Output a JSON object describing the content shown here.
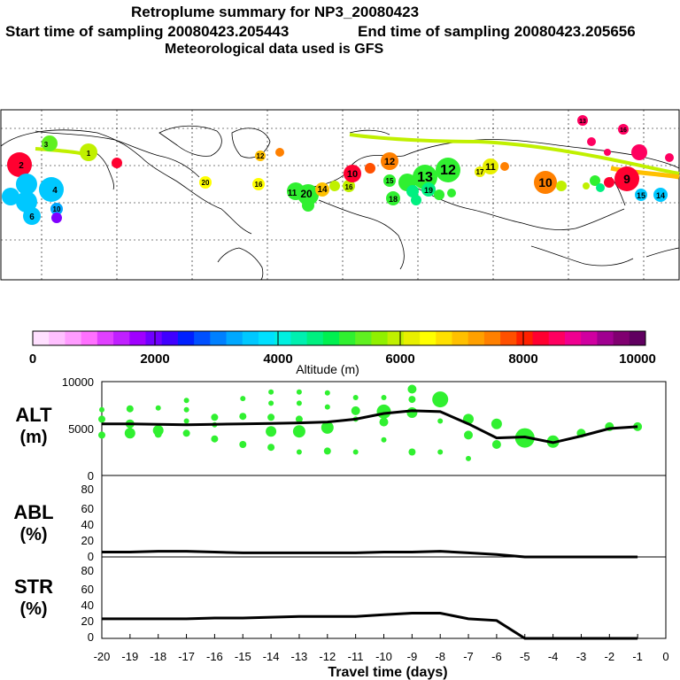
{
  "header": {
    "title": "Retroplume summary for NP3_20080423",
    "start_label": "Start time of sampling 20080423.205443",
    "end_label": "End time of sampling 20080423.205656",
    "met_label": "Meteorological data used is GFS"
  },
  "colorbar": {
    "title": "Altitude (m)",
    "ticks": [
      "0",
      "2000",
      "4000",
      "6000",
      "8000",
      "10000"
    ],
    "colors": [
      "#ffe0ff",
      "#ffc0ff",
      "#ff9cff",
      "#ff70ff",
      "#e040ff",
      "#c020ff",
      "#a000ff",
      "#7000ff",
      "#4000ff",
      "#0020ff",
      "#0050ff",
      "#0080ff",
      "#00a8ff",
      "#00c8ff",
      "#00e0ff",
      "#00f0e0",
      "#00f0b0",
      "#00f080",
      "#00f050",
      "#30f030",
      "#60f020",
      "#90f000",
      "#c0f000",
      "#e8f000",
      "#ffff00",
      "#ffe000",
      "#ffc000",
      "#ffa000",
      "#ff8000",
      "#ff5000",
      "#ff2000",
      "#ff0030",
      "#ff0060",
      "#f00090",
      "#d000a0",
      "#a00090",
      "#800070",
      "#600060"
    ]
  },
  "map": {
    "labels": [
      {
        "t": "3",
        "c": "#60f020"
      },
      {
        "t": "2",
        "c": "#ff0030"
      },
      {
        "t": "1",
        "c": "#c0f000"
      },
      {
        "t": "4",
        "c": "#00c8ff"
      },
      {
        "t": "6",
        "c": "#00c8ff"
      },
      {
        "t": "10",
        "c": "#0050ff"
      },
      {
        "t": "12",
        "c": "#ffc000"
      },
      {
        "t": "20",
        "c": "#ffff00"
      },
      {
        "t": "16",
        "c": "#ffff00"
      },
      {
        "t": "11",
        "c": "#60f020"
      },
      {
        "t": "20",
        "c": "#30f030"
      },
      {
        "t": "14",
        "c": "#ffc000"
      },
      {
        "t": "16",
        "c": "#c0f000"
      },
      {
        "t": "10",
        "c": "#ff0030"
      },
      {
        "t": "12",
        "c": "#ff8000"
      },
      {
        "t": "15",
        "c": "#30f030"
      },
      {
        "t": "13",
        "c": "#30f030"
      },
      {
        "t": "12",
        "c": "#30f030"
      },
      {
        "t": "11",
        "c": "#e8f000"
      },
      {
        "t": "17",
        "c": "#e8f000"
      },
      {
        "t": "10",
        "c": "#ff8000"
      },
      {
        "t": "9",
        "c": "#ff0030"
      },
      {
        "t": "13",
        "c": "#ff0060"
      },
      {
        "t": "16",
        "c": "#ff0060"
      },
      {
        "t": "15",
        "c": "#00c8ff"
      },
      {
        "t": "14",
        "c": "#00c8ff"
      },
      {
        "t": "18",
        "c": "#30f030"
      },
      {
        "t": "19",
        "c": "#00f080"
      }
    ]
  },
  "chart_data": [
    {
      "type": "scatter",
      "panel": "ALT",
      "ylabel": "ALT",
      "yunit": "(m)",
      "ylim": [
        0,
        10000
      ],
      "yticks": [
        "10000",
        "5000",
        "0"
      ],
      "xlim": [
        -20,
        0
      ],
      "median_line": {
        "x": [
          -20,
          -19,
          -18,
          -17,
          -16,
          -15,
          -14,
          -13,
          -12,
          -11,
          -10,
          -9,
          -8,
          -7,
          -6,
          -5,
          -4,
          -3,
          -2,
          -1
        ],
        "y": [
          5500,
          5500,
          5450,
          5400,
          5450,
          5500,
          5550,
          5600,
          5700,
          6000,
          6600,
          6900,
          6800,
          5500,
          4000,
          4100,
          3500,
          4200,
          5000,
          5200
        ]
      },
      "points": [
        {
          "x": -20,
          "y": 7000,
          "r": 3
        },
        {
          "x": -20,
          "y": 6000,
          "r": 4
        },
        {
          "x": -20,
          "y": 4300,
          "r": 4
        },
        {
          "x": -19,
          "y": 7100,
          "r": 4
        },
        {
          "x": -19,
          "y": 5500,
          "r": 5
        },
        {
          "x": -19,
          "y": 4500,
          "r": 6
        },
        {
          "x": -18,
          "y": 7200,
          "r": 3
        },
        {
          "x": -18,
          "y": 4800,
          "r": 6
        },
        {
          "x": -18,
          "y": 4400,
          "r": 4
        },
        {
          "x": -17,
          "y": 8000,
          "r": 3
        },
        {
          "x": -17,
          "y": 7000,
          "r": 3
        },
        {
          "x": -17,
          "y": 5800,
          "r": 3
        },
        {
          "x": -17,
          "y": 4500,
          "r": 4
        },
        {
          "x": -16,
          "y": 6200,
          "r": 4
        },
        {
          "x": -16,
          "y": 5400,
          "r": 3
        },
        {
          "x": -16,
          "y": 3900,
          "r": 4
        },
        {
          "x": -15,
          "y": 8200,
          "r": 3
        },
        {
          "x": -15,
          "y": 6300,
          "r": 4
        },
        {
          "x": -15,
          "y": 3300,
          "r": 4
        },
        {
          "x": -14,
          "y": 8900,
          "r": 3
        },
        {
          "x": -14,
          "y": 7700,
          "r": 3
        },
        {
          "x": -14,
          "y": 6200,
          "r": 4
        },
        {
          "x": -14,
          "y": 4700,
          "r": 6
        },
        {
          "x": -14,
          "y": 3000,
          "r": 4
        },
        {
          "x": -13,
          "y": 8900,
          "r": 3
        },
        {
          "x": -13,
          "y": 7700,
          "r": 3
        },
        {
          "x": -13,
          "y": 6000,
          "r": 4
        },
        {
          "x": -13,
          "y": 4700,
          "r": 7
        },
        {
          "x": -13,
          "y": 2500,
          "r": 3
        },
        {
          "x": -12,
          "y": 8800,
          "r": 3
        },
        {
          "x": -12,
          "y": 7300,
          "r": 3
        },
        {
          "x": -12,
          "y": 5100,
          "r": 7
        },
        {
          "x": -12,
          "y": 2600,
          "r": 4
        },
        {
          "x": -11,
          "y": 8300,
          "r": 3
        },
        {
          "x": -11,
          "y": 6900,
          "r": 5
        },
        {
          "x": -11,
          "y": 6000,
          "r": 3
        },
        {
          "x": -11,
          "y": 2500,
          "r": 3
        },
        {
          "x": -10,
          "y": 8300,
          "r": 3
        },
        {
          "x": -10,
          "y": 6800,
          "r": 8
        },
        {
          "x": -10,
          "y": 5700,
          "r": 5
        },
        {
          "x": -10,
          "y": 3800,
          "r": 3
        },
        {
          "x": -9,
          "y": 9200,
          "r": 5
        },
        {
          "x": -9,
          "y": 8100,
          "r": 4
        },
        {
          "x": -9,
          "y": 6700,
          "r": 6
        },
        {
          "x": -9,
          "y": 2500,
          "r": 4
        },
        {
          "x": -8,
          "y": 8100,
          "r": 9
        },
        {
          "x": -8,
          "y": 5800,
          "r": 3
        },
        {
          "x": -8,
          "y": 2500,
          "r": 3
        },
        {
          "x": -7,
          "y": 6000,
          "r": 6
        },
        {
          "x": -7,
          "y": 4300,
          "r": 5
        },
        {
          "x": -7,
          "y": 1800,
          "r": 3
        },
        {
          "x": -6,
          "y": 5500,
          "r": 6
        },
        {
          "x": -6,
          "y": 3300,
          "r": 5
        },
        {
          "x": -5,
          "y": 4000,
          "r": 11
        },
        {
          "x": -4,
          "y": 3600,
          "r": 7
        },
        {
          "x": -3,
          "y": 4500,
          "r": 5
        },
        {
          "x": -2,
          "y": 5200,
          "r": 5
        },
        {
          "x": -1,
          "y": 5200,
          "r": 5
        }
      ]
    },
    {
      "type": "line",
      "panel": "ABL",
      "ylabel": "ABL",
      "yunit": "(%)",
      "ylim": [
        0,
        100
      ],
      "yticks": [
        "80",
        "60",
        "40",
        "20",
        "0"
      ],
      "xlim": [
        -20,
        0
      ],
      "x": [
        -20,
        -19,
        -18,
        -17,
        -16,
        -15,
        -14,
        -13,
        -12,
        -11,
        -10,
        -9,
        -8,
        -7,
        -6,
        -5,
        -4,
        -3,
        -2,
        -1
      ],
      "y": [
        6,
        6,
        7,
        7,
        6,
        5,
        5,
        5,
        5,
        5,
        6,
        6,
        7,
        5,
        3,
        0,
        0,
        0,
        0,
        0
      ]
    },
    {
      "type": "line",
      "panel": "STR",
      "ylabel": "STR",
      "yunit": "(%)",
      "ylim": [
        0,
        100
      ],
      "yticks": [
        "80",
        "60",
        "40",
        "20",
        "0"
      ],
      "xlim": [
        -20,
        0
      ],
      "xticks": [
        "-20",
        "-19",
        "-18",
        "-17",
        "-16",
        "-15",
        "-14",
        "-13",
        "-12",
        "-11",
        "-10",
        "-9",
        "-8",
        "-7",
        "-6",
        "-5",
        "-4",
        "-3",
        "-2",
        "-1",
        "0"
      ],
      "xlabel": "Travel time (days)",
      "x": [
        -20,
        -19,
        -18,
        -17,
        -16,
        -15,
        -14,
        -13,
        -12,
        -11,
        -10,
        -9,
        -8,
        -7,
        -6,
        -5,
        -4,
        -3,
        -2,
        -1
      ],
      "y": [
        24,
        24,
        24,
        24,
        25,
        25,
        26,
        27,
        27,
        27,
        29,
        31,
        31,
        24,
        22,
        0,
        0,
        0,
        0,
        0
      ]
    }
  ]
}
